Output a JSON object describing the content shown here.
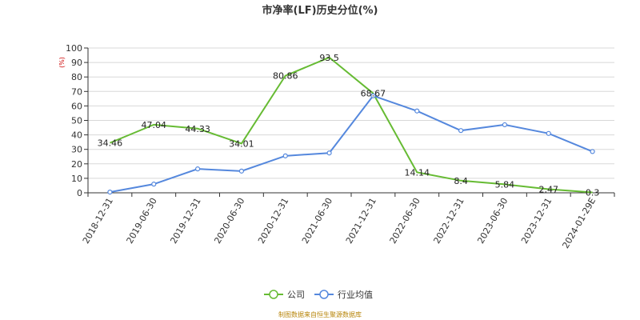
{
  "chart_data": {
    "type": "line",
    "title": "市净率(LF)历史分位(%)",
    "ylabel_unit": "(%)",
    "categories": [
      "2018-12-31",
      "2019-06-30",
      "2019-12-31",
      "2020-06-30",
      "2020-12-31",
      "2021-06-30",
      "2021-12-31",
      "2022-06-30",
      "2022-12-31",
      "2023-06-30",
      "2023-12-31",
      "2024-01-29E"
    ],
    "ylim": [
      0,
      100
    ],
    "yticks": [
      0,
      10,
      20,
      30,
      40,
      50,
      60,
      70,
      80,
      90,
      100
    ],
    "grid": true,
    "legend_position": "bottom-center",
    "series": [
      {
        "name": "公司",
        "color": "#66bb33",
        "values": [
          34.46,
          47.04,
          44.33,
          34.01,
          80.86,
          93.5,
          68.67,
          14.14,
          8.4,
          5.84,
          2.47,
          0.3
        ],
        "labels": [
          "34.46",
          "47.04",
          "44.33",
          "34.01",
          "80.86",
          "93.5",
          "68.67",
          "14.14",
          "8.4",
          "5.84",
          "2.47",
          "0.3"
        ],
        "markers": false
      },
      {
        "name": "行业均值",
        "color": "#5588dd",
        "values": [
          0.5,
          6,
          16.5,
          15,
          25.5,
          27.5,
          67,
          56.5,
          43,
          47,
          41,
          28.5
        ],
        "markers": true
      }
    ],
    "source": "制图数据来自恒生聚源数据库"
  }
}
